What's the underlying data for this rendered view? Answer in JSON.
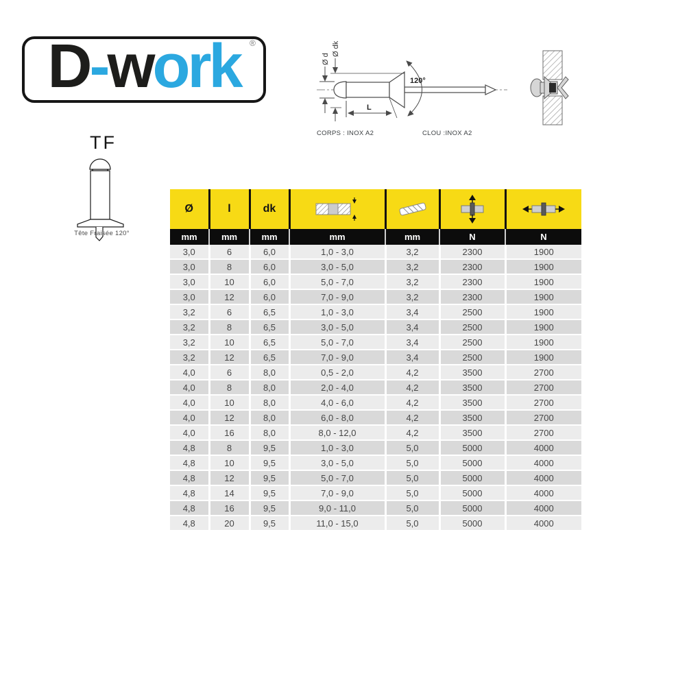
{
  "colors": {
    "ink": "#1d1d1b",
    "blue": "#2ba8e0",
    "yellow": "#f7da15",
    "unitbg": "#0c0c0c",
    "rowlight": "#ececec",
    "rowdark": "#d9d9d9",
    "celltext": "#464646"
  },
  "logo": {
    "parts": [
      {
        "text": "D"
      },
      {
        "text": "-"
      },
      {
        "text": "w"
      },
      {
        "text": "ork"
      }
    ],
    "registered": "®"
  },
  "tf_figure": {
    "label": "TF",
    "caption": "Tête Fraisée 120°"
  },
  "diagram": {
    "dim_d": "Ø d",
    "dim_dk": "Ø dk",
    "angle": "120°",
    "length": "L",
    "body_label": "CORPS : INOX A2",
    "mandrel_label": "CLOU :INOX A2"
  },
  "table": {
    "columns": [
      {
        "header": "Ø",
        "unit": "mm",
        "icon": ""
      },
      {
        "header": "l",
        "unit": "mm",
        "icon": ""
      },
      {
        "header": "dk",
        "unit": "mm",
        "icon": ""
      },
      {
        "header": "",
        "unit": "mm",
        "icon": "grip-range-icon"
      },
      {
        "header": "",
        "unit": "mm",
        "icon": "drill-bit-icon"
      },
      {
        "header": "",
        "unit": "N",
        "icon": "shear-strength-icon"
      },
      {
        "header": "",
        "unit": "N",
        "icon": "tensile-strength-icon"
      }
    ],
    "rows": [
      [
        "3,0",
        "6",
        "6,0",
        "1,0 - 3,0",
        "3,2",
        "2300",
        "1900"
      ],
      [
        "3,0",
        "8",
        "6,0",
        "3,0 - 5,0",
        "3,2",
        "2300",
        "1900"
      ],
      [
        "3,0",
        "10",
        "6,0",
        "5,0 - 7,0",
        "3,2",
        "2300",
        "1900"
      ],
      [
        "3,0",
        "12",
        "6,0",
        "7,0 - 9,0",
        "3,2",
        "2300",
        "1900"
      ],
      [
        "3,2",
        "6",
        "6,5",
        "1,0 - 3,0",
        "3,4",
        "2500",
        "1900"
      ],
      [
        "3,2",
        "8",
        "6,5",
        "3,0 - 5,0",
        "3,4",
        "2500",
        "1900"
      ],
      [
        "3,2",
        "10",
        "6,5",
        "5,0 - 7,0",
        "3,4",
        "2500",
        "1900"
      ],
      [
        "3,2",
        "12",
        "6,5",
        "7,0 - 9,0",
        "3,4",
        "2500",
        "1900"
      ],
      [
        "4,0",
        "6",
        "8,0",
        "0,5 - 2,0",
        "4,2",
        "3500",
        "2700"
      ],
      [
        "4,0",
        "8",
        "8,0",
        "2,0 - 4,0",
        "4,2",
        "3500",
        "2700"
      ],
      [
        "4,0",
        "10",
        "8,0",
        "4,0 - 6,0",
        "4,2",
        "3500",
        "2700"
      ],
      [
        "4,0",
        "12",
        "8,0",
        "6,0 - 8,0",
        "4,2",
        "3500",
        "2700"
      ],
      [
        "4,0",
        "16",
        "8,0",
        "8,0 - 12,0",
        "4,2",
        "3500",
        "2700"
      ],
      [
        "4,8",
        "8",
        "9,5",
        "1,0 - 3,0",
        "5,0",
        "5000",
        "4000"
      ],
      [
        "4,8",
        "10",
        "9,5",
        "3,0 - 5,0",
        "5,0",
        "5000",
        "4000"
      ],
      [
        "4,8",
        "12",
        "9,5",
        "5,0 - 7,0",
        "5,0",
        "5000",
        "4000"
      ],
      [
        "4,8",
        "14",
        "9,5",
        "7,0 - 9,0",
        "5,0",
        "5000",
        "4000"
      ],
      [
        "4,8",
        "16",
        "9,5",
        "9,0 - 11,0",
        "5,0",
        "5000",
        "4000"
      ],
      [
        "4,8",
        "20",
        "9,5",
        "11,0 - 15,0",
        "5,0",
        "5000",
        "4000"
      ]
    ]
  }
}
